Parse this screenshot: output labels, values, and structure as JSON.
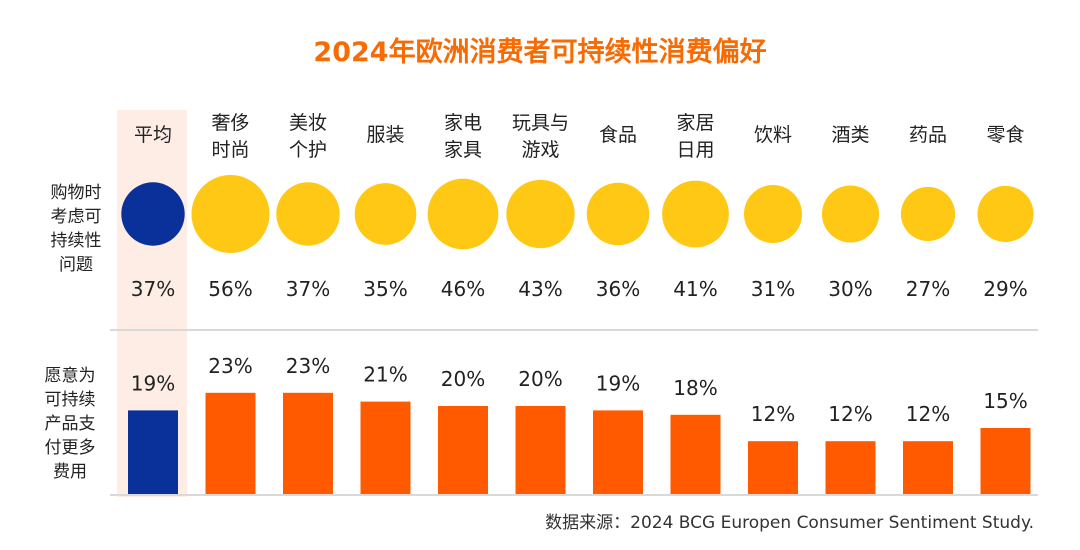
{
  "title": "2024年欧洲消费者可持续性消费偏好",
  "source": "数据来源：2024 BCG Europen Consumer Sentiment Study.",
  "colors": {
    "title": "#F76B05",
    "highlight_bg": "#FDEDE4",
    "average": "#0A309A",
    "circle": "#FFC814",
    "bar": "#FF5A00",
    "divider": "#D9D9D9",
    "text": "#222222"
  },
  "chart_data": [
    {
      "type": "bubble",
      "row_label": [
        "购物时",
        "考虑可",
        "持续性",
        "问题"
      ],
      "categories": [
        [
          "平均"
        ],
        [
          "奢侈",
          "时尚"
        ],
        [
          "美妆",
          "个护"
        ],
        [
          "服装"
        ],
        [
          "家电",
          "家具"
        ],
        [
          "玩具与",
          "游戏"
        ],
        [
          "食品"
        ],
        [
          "家居",
          "日用"
        ],
        [
          "饮料"
        ],
        [
          "酒类"
        ],
        [
          "药品"
        ],
        [
          "零食"
        ]
      ],
      "values": [
        37,
        56,
        37,
        35,
        46,
        43,
        36,
        41,
        31,
        30,
        27,
        29
      ],
      "labels": [
        "37%",
        "56%",
        "37%",
        "35%",
        "46%",
        "43%",
        "36%",
        "41%",
        "31%",
        "30%",
        "27%",
        "29%"
      ],
      "highlight": "平均"
    },
    {
      "type": "bar",
      "row_label": [
        "愿意为",
        "可持续",
        "产品支",
        "付更多",
        "费用"
      ],
      "categories": [
        "平均",
        "奢侈时尚",
        "美妆个护",
        "服装",
        "家电家具",
        "玩具与游戏",
        "食品",
        "家居日用",
        "饮料",
        "酒类",
        "药品",
        "零食"
      ],
      "values": [
        19,
        23,
        23,
        21,
        20,
        20,
        19,
        18,
        12,
        12,
        12,
        15
      ],
      "labels": [
        "19%",
        "23%",
        "23%",
        "21%",
        "20%",
        "20%",
        "19%",
        "18%",
        "12%",
        "12%",
        "12%",
        "15%"
      ],
      "highlight": "平均"
    }
  ]
}
